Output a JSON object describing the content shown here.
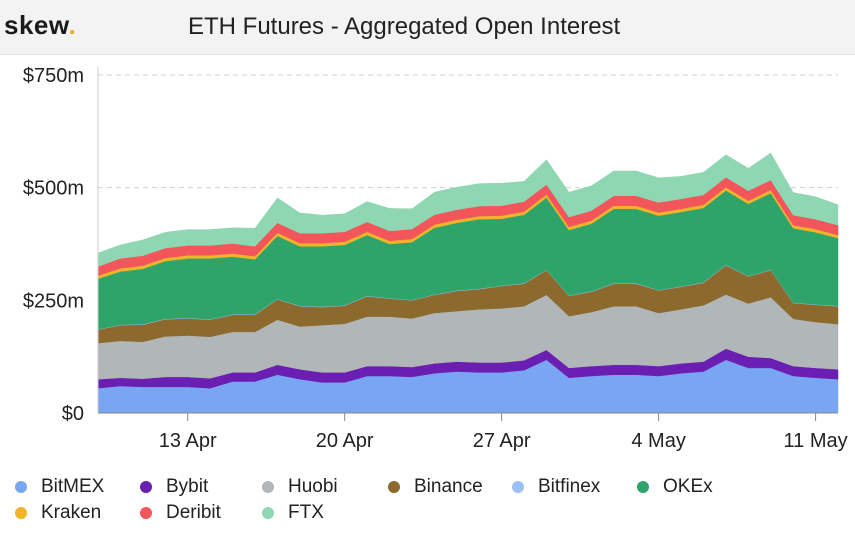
{
  "header": {
    "logo": "skew",
    "logo_dot": ".",
    "title": "ETH Futures - Aggregated Open Interest"
  },
  "colors": {
    "BitMEX": "#79a6f2",
    "Bybit": "#6a1fb2",
    "Huobi": "#b1b6b9",
    "Binance": "#8c6a2e",
    "Bitfinex": "#9cc0f5",
    "OKEx": "#2fa46a",
    "Kraken": "#f0b429",
    "Deribit": "#f2555a",
    "FTX": "#8fd6b2"
  },
  "chart_data": {
    "type": "area",
    "stacked": true,
    "title": "ETH Futures - Aggregated Open Interest",
    "xlabel": "",
    "ylabel": "",
    "ylim": [
      0,
      750
    ],
    "yunit": "$m",
    "yticks": [
      0,
      250,
      500,
      750
    ],
    "ytick_labels": [
      "$0",
      "$250m",
      "$500m",
      "$750m"
    ],
    "grid": true,
    "legend": "bottom",
    "x": [
      "9 Apr",
      "10 Apr",
      "11 Apr",
      "12 Apr",
      "13 Apr",
      "14 Apr",
      "15 Apr",
      "16 Apr",
      "17 Apr",
      "18 Apr",
      "19 Apr",
      "20 Apr",
      "21 Apr",
      "22 Apr",
      "23 Apr",
      "24 Apr",
      "25 Apr",
      "26 Apr",
      "27 Apr",
      "28 Apr",
      "29 Apr",
      "30 Apr",
      "1 May",
      "2 May",
      "3 May",
      "4 May",
      "5 May",
      "6 May",
      "7 May",
      "8 May",
      "9 May",
      "10 May",
      "11 May",
      "12 May"
    ],
    "xticks": [
      "13 Apr",
      "20 Apr",
      "27 Apr",
      "4 May",
      "11 May"
    ],
    "series": [
      {
        "name": "BitMEX",
        "values": [
          55,
          60,
          58,
          58,
          58,
          55,
          70,
          70,
          85,
          75,
          68,
          68,
          82,
          82,
          80,
          88,
          92,
          90,
          90,
          95,
          118,
          78,
          82,
          85,
          85,
          82,
          88,
          92,
          118,
          100,
          100,
          82,
          78,
          75
        ]
      },
      {
        "name": "Bybit",
        "values": [
          20,
          18,
          18,
          22,
          22,
          22,
          20,
          20,
          22,
          22,
          22,
          22,
          22,
          22,
          22,
          22,
          22,
          22,
          22,
          22,
          22,
          22,
          22,
          22,
          22,
          22,
          22,
          22,
          25,
          25,
          22,
          22,
          22,
          22
        ]
      },
      {
        "name": "Huobi",
        "values": [
          80,
          82,
          82,
          90,
          92,
          92,
          90,
          90,
          100,
          95,
          105,
          108,
          110,
          110,
          108,
          112,
          112,
          118,
          120,
          120,
          122,
          115,
          120,
          130,
          130,
          118,
          120,
          125,
          120,
          118,
          135,
          105,
          102,
          100
        ]
      },
      {
        "name": "Binance",
        "values": [
          30,
          35,
          38,
          38,
          38,
          38,
          38,
          38,
          45,
          45,
          40,
          40,
          45,
          40,
          40,
          40,
          45,
          45,
          50,
          50,
          55,
          45,
          45,
          50,
          50,
          50,
          50,
          50,
          65,
          60,
          60,
          35,
          38,
          40
        ]
      },
      {
        "name": "Bitfinex",
        "values": [
          1,
          1,
          1,
          1,
          1,
          1,
          1,
          1,
          1,
          1,
          1,
          1,
          1,
          1,
          1,
          1,
          1,
          1,
          1,
          1,
          1,
          1,
          1,
          1,
          1,
          1,
          1,
          1,
          1,
          1,
          1,
          1,
          1,
          1
        ]
      },
      {
        "name": "OKEx",
        "values": [
          112,
          118,
          123,
          128,
          132,
          135,
          128,
          122,
          140,
          132,
          134,
          134,
          135,
          120,
          128,
          148,
          150,
          154,
          148,
          152,
          160,
          145,
          150,
          165,
          165,
          165,
          165,
          165,
          165,
          160,
          170,
          165,
          160,
          150
        ]
      },
      {
        "name": "Kraken",
        "values": [
          7,
          7,
          7,
          7,
          7,
          7,
          7,
          7,
          7,
          7,
          7,
          7,
          7,
          7,
          7,
          7,
          7,
          7,
          7,
          7,
          7,
          7,
          7,
          7,
          7,
          7,
          7,
          7,
          7,
          7,
          7,
          7,
          7,
          7
        ]
      },
      {
        "name": "Deribit",
        "values": [
          20,
          22,
          22,
          22,
          22,
          22,
          22,
          22,
          22,
          22,
          22,
          22,
          22,
          22,
          22,
          22,
          22,
          22,
          22,
          22,
          22,
          22,
          22,
          22,
          22,
          22,
          22,
          22,
          22,
          22,
          22,
          22,
          22,
          22
        ]
      },
      {
        "name": "FTX",
        "values": [
          30,
          30,
          35,
          35,
          35,
          35,
          35,
          40,
          55,
          45,
          40,
          40,
          45,
          50,
          45,
          50,
          50,
          50,
          50,
          45,
          55,
          55,
          55,
          55,
          55,
          55,
          50,
          50,
          50,
          50,
          60,
          50,
          50,
          45
        ]
      }
    ]
  },
  "legend": [
    {
      "name": "BitMEX"
    },
    {
      "name": "Bybit"
    },
    {
      "name": "Huobi"
    },
    {
      "name": "Binance"
    },
    {
      "name": "Bitfinex"
    },
    {
      "name": "OKEx"
    },
    {
      "name": "Kraken"
    },
    {
      "name": "Deribit"
    },
    {
      "name": "FTX"
    }
  ]
}
